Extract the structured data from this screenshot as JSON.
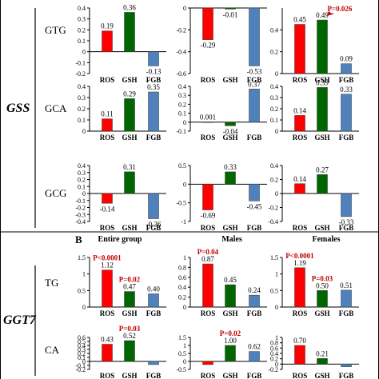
{
  "labels": {
    "gss": "GSS",
    "ggt7": "GGT7",
    "panel_b": "B",
    "col_entire": "Entire group",
    "col_males": "Males",
    "col_females": "Females"
  },
  "colors": {
    "ROS": "#ff0000",
    "GSH": "#006600",
    "FGB": "#4f81bd",
    "pval": "#c00000"
  },
  "chart_data": [
    {
      "gene": "GSS",
      "row": "GTG",
      "col": 0,
      "type": "bar",
      "categories": [
        "ROS",
        "GSH",
        "FGB"
      ],
      "values": [
        0.19,
        0.36,
        -0.13
      ],
      "value_labels": [
        "0.19",
        "0.36",
        "-0.13"
      ],
      "ylim": [
        -0.2,
        0.4
      ],
      "ticks": [
        "-0.2",
        "-0.1",
        "0",
        "0.1",
        "0.2",
        "0.3",
        "0.4"
      ],
      "tick_values": [
        -0.2,
        -0.1,
        0,
        0.1,
        0.2,
        0.3,
        0.4
      ]
    },
    {
      "gene": "GSS",
      "row": "GTG",
      "col": 1,
      "type": "bar",
      "categories": [
        "ROS",
        "GSH",
        "FGB"
      ],
      "values": [
        -0.29,
        -0.01,
        -0.53
      ],
      "value_labels": [
        "-0.29",
        "-0.01",
        "-0.53"
      ],
      "ylim": [
        -0.6,
        0
      ],
      "ticks": [
        "0",
        "-0.2",
        "-0.4",
        "-0.6"
      ],
      "tick_values": [
        0,
        -0.2,
        -0.4,
        -0.6
      ]
    },
    {
      "gene": "GSS",
      "row": "GTG",
      "col": 2,
      "type": "bar",
      "categories": [
        "ROS",
        "GSH",
        "FGB"
      ],
      "values": [
        0.45,
        0.49,
        0.09
      ],
      "value_labels": [
        "0.45",
        "0.49",
        "0.09"
      ],
      "ylim": [
        0,
        0.6
      ],
      "ticks": [
        "0",
        "0.2",
        "0.4"
      ],
      "tick_values": [
        0,
        0.2,
        0.4
      ],
      "pvalue": {
        "text": "P=0.026",
        "target": 1
      }
    },
    {
      "gene": "GSS",
      "row": "GCA",
      "col": 0,
      "type": "bar",
      "categories": [
        "ROS",
        "GSH",
        "FGB"
      ],
      "values": [
        0.11,
        0.29,
        0.35
      ],
      "value_labels": [
        "0.11",
        "0.29",
        "0.35"
      ],
      "ylim": [
        0,
        0.4
      ],
      "ticks": [
        "0",
        "0.1",
        "0.2",
        "0.3",
        "0.4"
      ],
      "tick_values": [
        0,
        0.1,
        0.2,
        0.3,
        0.4
      ]
    },
    {
      "gene": "GSS",
      "row": "GCA",
      "col": 1,
      "type": "bar",
      "categories": [
        "ROS",
        "GSH",
        "FGB"
      ],
      "values": [
        0.001,
        -0.04,
        0.37
      ],
      "value_labels": [
        "0.001",
        "-0.04",
        "0.37"
      ],
      "ylim": [
        -0.1,
        0.4
      ],
      "ticks": [
        "-0.1",
        "0",
        "0.1",
        "0.2",
        "0.3",
        "0.4"
      ],
      "tick_values": [
        -0.1,
        0,
        0.1,
        0.2,
        0.3,
        0.4
      ]
    },
    {
      "gene": "GSS",
      "row": "GCA",
      "col": 2,
      "type": "bar",
      "categories": [
        "ROS",
        "GSH",
        "FGB"
      ],
      "values": [
        0.14,
        0.39,
        0.33
      ],
      "value_labels": [
        "0.14",
        "0.39",
        "0.33"
      ],
      "ylim": [
        0,
        0.4
      ],
      "ticks": [
        "0",
        "0.1",
        "0.2",
        "0.3",
        "0.4"
      ],
      "tick_values": [
        0,
        0.1,
        0.2,
        0.3,
        0.4
      ]
    },
    {
      "gene": "GSS",
      "row": "GCG",
      "col": 0,
      "type": "bar",
      "categories": [
        "ROS",
        "GSH",
        "FGB"
      ],
      "values": [
        -0.14,
        0.31,
        -0.36
      ],
      "value_labels": [
        "-0.14",
        "0.31",
        "-0.36"
      ],
      "ylim": [
        -0.4,
        0.4
      ],
      "ticks": [
        "-0.4",
        "-0.3",
        "-0.2",
        "-0.1",
        "0",
        "0.1",
        "0.2",
        "0.3",
        "0.4"
      ],
      "tick_values": [
        -0.4,
        -0.3,
        -0.2,
        -0.1,
        0,
        0.1,
        0.2,
        0.3,
        0.4
      ]
    },
    {
      "gene": "GSS",
      "row": "GCG",
      "col": 1,
      "type": "bar",
      "categories": [
        "ROS",
        "GSH",
        "FGB"
      ],
      "values": [
        -0.69,
        0.33,
        -0.45
      ],
      "value_labels": [
        "-0.69",
        "0.33",
        "-0.45"
      ],
      "ylim": [
        -1,
        0.5
      ],
      "ticks": [
        "-1",
        "-0.5",
        "0",
        "0.5"
      ],
      "tick_values": [
        -1,
        -0.5,
        0,
        0.5
      ]
    },
    {
      "gene": "GSS",
      "row": "GCG",
      "col": 2,
      "type": "bar",
      "categories": [
        "ROS",
        "GSH",
        "FGB"
      ],
      "values": [
        0.14,
        0.27,
        -0.33
      ],
      "value_labels": [
        "0.14",
        "0.27",
        "-0.33"
      ],
      "ylim": [
        -0.4,
        0.4
      ],
      "ticks": [
        "-0.4",
        "-0.2",
        "0",
        "0.2",
        "0.4"
      ],
      "tick_values": [
        -0.4,
        -0.2,
        0,
        0.2,
        0.4
      ]
    },
    {
      "gene": "GGT7",
      "row": "TG",
      "col": 0,
      "type": "bar",
      "categories": [
        "ROS",
        "GSH",
        "FGB"
      ],
      "values": [
        1.12,
        0.47,
        0.4
      ],
      "value_labels": [
        "1.12",
        "0.47",
        "0.40"
      ],
      "ylim": [
        0,
        1.5
      ],
      "ticks": [
        "0",
        "0.5",
        "1",
        "1.5"
      ],
      "tick_values": [
        0,
        0.5,
        1,
        1.5
      ],
      "pvalues": [
        {
          "text": "P<0.0001",
          "target": 0
        },
        {
          "text": "P=0.02",
          "target": 1
        }
      ]
    },
    {
      "gene": "GGT7",
      "row": "TG",
      "col": 1,
      "type": "bar",
      "categories": [
        "ROS",
        "GSH",
        "FGB"
      ],
      "values": [
        0.87,
        0.45,
        0.24
      ],
      "value_labels": [
        "0.87",
        "0.45",
        "0.24"
      ],
      "ylim": [
        0,
        1
      ],
      "ticks": [
        "0",
        "0.2",
        "0.4",
        "0.6",
        "0.8",
        "1"
      ],
      "tick_values": [
        0,
        0.2,
        0.4,
        0.6,
        0.8,
        1
      ],
      "pvalues": [
        {
          "text": "P=0.04",
          "target": 0
        }
      ]
    },
    {
      "gene": "GGT7",
      "row": "TG",
      "col": 2,
      "type": "bar",
      "categories": [
        "ROS",
        "GSH",
        "FGB"
      ],
      "values": [
        1.19,
        0.5,
        0.51
      ],
      "value_labels": [
        "1.19",
        "0.50",
        "0.51"
      ],
      "ylim": [
        0,
        1.5
      ],
      "ticks": [
        "0",
        "0.5",
        "1",
        "1.5"
      ],
      "tick_values": [
        0,
        0.5,
        1,
        1.5
      ],
      "pvalues": [
        {
          "text": "P<0.0001",
          "target": 0
        },
        {
          "text": "P=0.03",
          "target": 1
        }
      ]
    },
    {
      "gene": "GGT7",
      "row": "CA",
      "col": 0,
      "type": "bar",
      "categories": [
        "ROS",
        "GSH",
        "FGB"
      ],
      "values": [
        0.43,
        0.52,
        -0.08
      ],
      "value_labels": [
        "0.43",
        "0.52",
        ""
      ],
      "ylim": [
        -0.2,
        0.6
      ],
      "ticks": [
        "-0.2",
        "-0.1",
        "0",
        "0.1",
        "0.2",
        "0.3",
        "0.4",
        "0.5",
        "0.6"
      ],
      "tick_values": [
        -0.2,
        -0.1,
        0,
        0.1,
        0.2,
        0.3,
        0.4,
        0.5,
        0.6
      ],
      "pvalues": [
        {
          "text": "P=0.03",
          "target": 1
        }
      ]
    },
    {
      "gene": "GGT7",
      "row": "CA",
      "col": 1,
      "type": "bar",
      "categories": [
        "ROS",
        "GSH",
        "FGB"
      ],
      "values": [
        -0.2,
        1.0,
        0.62
      ],
      "value_labels": [
        "",
        "1.00",
        "0.62"
      ],
      "ylim": [
        -0.5,
        1.5
      ],
      "ticks": [
        "-0.5",
        "0",
        "0.5",
        "1",
        "1.5"
      ],
      "tick_values": [
        -0.5,
        0,
        0.5,
        1,
        1.5
      ],
      "pvalues": [
        {
          "text": "P=0.02",
          "target": 1
        }
      ]
    },
    {
      "gene": "GGT7",
      "row": "CA",
      "col": 2,
      "type": "bar",
      "categories": [
        "ROS",
        "GSH",
        "FGB"
      ],
      "values": [
        0.7,
        0.21,
        -0.1
      ],
      "value_labels": [
        "0.70",
        "0.21",
        ""
      ],
      "ylim": [
        -0.2,
        1
      ],
      "ticks": [
        "-0.2",
        "0",
        "0.2",
        "0.4",
        "0.6",
        "0.8",
        "1"
      ],
      "tick_values": [
        -0.2,
        0,
        0.2,
        0.4,
        0.6,
        0.8,
        1
      ]
    }
  ]
}
